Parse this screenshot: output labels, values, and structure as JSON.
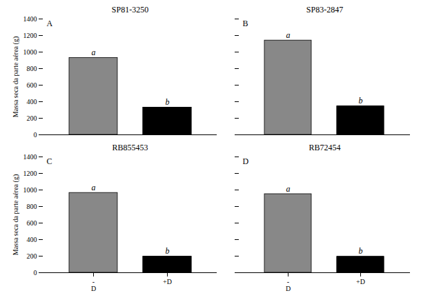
{
  "chart_data": [
    {
      "type": "bar",
      "title": "SP81-3250",
      "categories": [
        "-\nD",
        "+D"
      ],
      "values": [
        930,
        330
      ],
      "colors": [
        "#888888",
        "#ffffff"
      ],
      "ylabel": "Massa seca da parte aérea (g)",
      "ylim": [
        0,
        1400
      ],
      "yticks": [
        0,
        200,
        400,
        600,
        800,
        1000,
        1200,
        1400
      ],
      "annotations": [
        {
          "text": "A"
        },
        {
          "text": "a",
          "x": "-\nD"
        },
        {
          "text": "b",
          "x": "+D"
        }
      ],
      "tick_labels": "y"
    },
    {
      "type": "bar",
      "title": "SP83-2847",
      "categories": [
        "-\nD",
        "+D"
      ],
      "values": [
        1140,
        345
      ],
      "colors": [
        "#888888",
        "#ffffff"
      ],
      "ylim": [
        0,
        1400
      ],
      "yticks": [
        0,
        200,
        400,
        600,
        800,
        1000,
        1200,
        1400
      ],
      "annotations": [
        {
          "text": "B"
        },
        {
          "text": "a",
          "x": "-\nD"
        },
        {
          "text": "b",
          "x": "+D"
        }
      ],
      "tick_labels": false
    },
    {
      "type": "bar",
      "title": "RB855453",
      "categories": [
        "-\nD",
        "+D"
      ],
      "values": [
        965,
        195
      ],
      "colors": [
        "#888888",
        "#ffffff"
      ],
      "ylabel": "Massa seca da parte aérea (g)",
      "ylim": [
        0,
        1400
      ],
      "yticks": [
        0,
        200,
        400,
        600,
        800,
        1000,
        1200,
        1400
      ],
      "annotations": [
        {
          "text": "C"
        },
        {
          "text": "a",
          "x": "-\nD"
        },
        {
          "text": "b",
          "x": "+D"
        }
      ]
    },
    {
      "type": "bar",
      "title": "RB72454",
      "categories": [
        "-\nD",
        "+D"
      ],
      "values": [
        950,
        193
      ],
      "colors": [
        "#888888",
        "#ffffff"
      ],
      "ylim": [
        0,
        1400
      ],
      "yticks": [
        0,
        200,
        400,
        600,
        800,
        1000,
        1200,
        1400
      ],
      "annotations": [
        {
          "text": "D"
        },
        {
          "text": "a",
          "x": "-\nD"
        },
        {
          "text": "b",
          "x": "+D"
        }
      ],
      "tick_labels": "x"
    }
  ]
}
